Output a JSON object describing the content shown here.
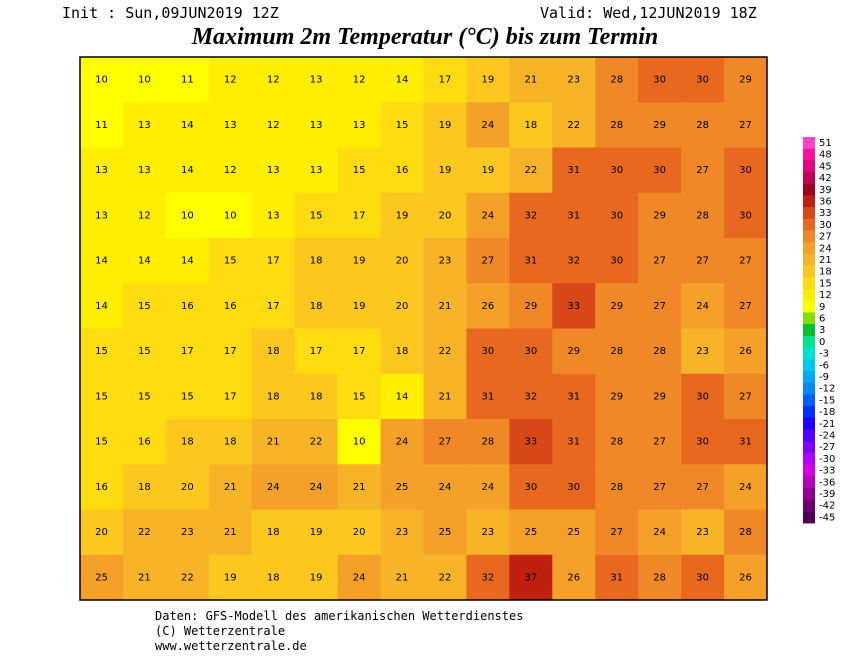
{
  "header": {
    "init": "Init : Sun,09JUN2019 12Z",
    "valid": "Valid: Wed,12JUN2019 18Z",
    "title": "Maximum 2m Temperatur (°C) bis zum Termin"
  },
  "map": {
    "rows": [
      [
        10,
        10,
        11,
        12,
        12,
        13,
        12,
        14,
        17,
        19,
        21,
        23,
        28,
        30,
        30,
        29
      ],
      [
        11,
        13,
        14,
        13,
        12,
        13,
        13,
        15,
        19,
        24,
        18,
        22,
        28,
        29,
        28,
        27
      ],
      [
        13,
        13,
        14,
        12,
        13,
        13,
        15,
        16,
        19,
        19,
        22,
        31,
        30,
        30,
        27,
        30
      ],
      [
        13,
        12,
        10,
        10,
        13,
        15,
        17,
        19,
        20,
        24,
        32,
        31,
        30,
        29,
        28,
        30
      ],
      [
        14,
        14,
        14,
        15,
        17,
        18,
        19,
        20,
        23,
        27,
        31,
        32,
        30,
        27,
        27,
        27
      ],
      [
        14,
        15,
        16,
        16,
        17,
        18,
        19,
        20,
        21,
        26,
        29,
        33,
        29,
        27,
        24,
        27
      ],
      [
        15,
        15,
        17,
        17,
        18,
        17,
        17,
        18,
        22,
        30,
        30,
        29,
        28,
        28,
        23,
        26
      ],
      [
        15,
        15,
        15,
        17,
        18,
        18,
        15,
        14,
        21,
        31,
        32,
        31,
        29,
        29,
        30,
        27
      ],
      [
        15,
        16,
        18,
        18,
        21,
        22,
        10,
        24,
        27,
        28,
        33,
        31,
        28,
        27,
        30,
        31
      ],
      [
        16,
        18,
        20,
        21,
        24,
        24,
        21,
        25,
        24,
        24,
        30,
        30,
        28,
        27,
        27,
        24
      ],
      [
        20,
        22,
        23,
        21,
        18,
        19,
        20,
        23,
        25,
        23,
        25,
        25,
        27,
        24,
        23,
        28
      ],
      [
        25,
        21,
        22,
        19,
        18,
        19,
        24,
        21,
        22,
        32,
        37,
        26,
        31,
        28,
        30,
        26
      ]
    ]
  },
  "colorbar": {
    "levels": [
      {
        "value": 51,
        "color": "#ff40c8"
      },
      {
        "value": 48,
        "color": "#ff10a0"
      },
      {
        "value": 45,
        "color": "#e00080"
      },
      {
        "value": 42,
        "color": "#c00050"
      },
      {
        "value": 39,
        "color": "#a00020"
      },
      {
        "value": 36,
        "color": "#c02010"
      },
      {
        "value": 33,
        "color": "#d84818"
      },
      {
        "value": 30,
        "color": "#e86820"
      },
      {
        "value": 27,
        "color": "#f08828"
      },
      {
        "value": 24,
        "color": "#f5a028"
      },
      {
        "value": 21,
        "color": "#f8b428"
      },
      {
        "value": 18,
        "color": "#fcc820"
      },
      {
        "value": 15,
        "color": "#ffdc10"
      },
      {
        "value": 12,
        "color": "#ffee00"
      },
      {
        "value": 9,
        "color": "#ffff00"
      },
      {
        "value": 6,
        "color": "#80e000"
      },
      {
        "value": 3,
        "color": "#00c030"
      },
      {
        "value": 0,
        "color": "#00e090"
      },
      {
        "value": -3,
        "color": "#00e0d0"
      },
      {
        "value": -6,
        "color": "#00c8f0"
      },
      {
        "value": -9,
        "color": "#00a8ff"
      },
      {
        "value": -12,
        "color": "#0088ff"
      },
      {
        "value": -15,
        "color": "#0060ff"
      },
      {
        "value": -18,
        "color": "#0030ff"
      },
      {
        "value": -21,
        "color": "#2000ff"
      },
      {
        "value": -24,
        "color": "#5000ff"
      },
      {
        "value": -27,
        "color": "#8000ff"
      },
      {
        "value": -30,
        "color": "#b000ff"
      },
      {
        "value": -33,
        "color": "#d000e0"
      },
      {
        "value": -36,
        "color": "#b000b8"
      },
      {
        "value": -39,
        "color": "#900090"
      },
      {
        "value": -42,
        "color": "#700070"
      },
      {
        "value": -45,
        "color": "#500050"
      }
    ]
  },
  "footer": {
    "line1": "Daten: GFS-Modell des amerikanischen Wetterdienstes",
    "line2": "(C) Wetterzentrale",
    "line3": "www.wetterzentrale.de"
  }
}
